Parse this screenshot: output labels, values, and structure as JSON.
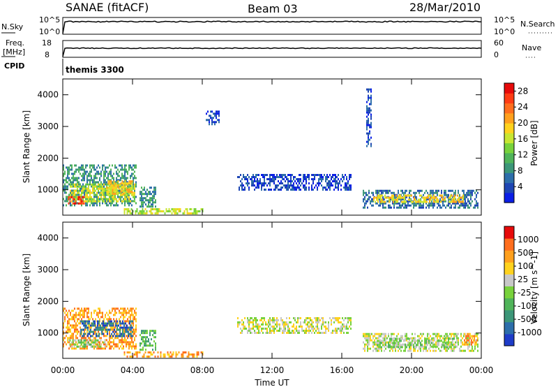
{
  "header": {
    "station": "SANAE (fitACF)",
    "beam": "Beam 03",
    "date": "28/Mar/2010"
  },
  "nsky_panel": {
    "left_label": "N.Sky",
    "right_label": "N.Search",
    "left_ticks": [
      "10^5",
      "10^0"
    ],
    "right_ticks": [
      "10^5",
      "10^0"
    ]
  },
  "freq_panel": {
    "left_label_1": "Freq.",
    "left_label_2": "[MHz]",
    "right_label": "Nave",
    "left_ticks": [
      "18",
      "8"
    ],
    "right_ticks": [
      "60",
      "0"
    ]
  },
  "cpid": {
    "label": "CPID",
    "value": "themis 3300"
  },
  "chart_data": [
    {
      "type": "heatmap",
      "panel": "power",
      "ylabel": "Slant Range [km]",
      "xlabel": "Time UT",
      "y_ticks": [
        "1000",
        "2000",
        "3000",
        "4000"
      ],
      "x_ticks": [
        "00:00",
        "04:00",
        "08:00",
        "12:00",
        "16:00",
        "20:00",
        "00:00"
      ],
      "ylim": [
        200,
        4500
      ],
      "xlim_hours": [
        0,
        24
      ],
      "colorbar": {
        "label": "Power [dB]",
        "range": [
          0,
          30
        ],
        "ticks": [
          "4",
          "8",
          "12",
          "16",
          "20",
          "24",
          "28"
        ],
        "colors": [
          "#0a1ee6",
          "#1e46b4",
          "#2d6eaa",
          "#3c9678",
          "#50b45a",
          "#78d23c",
          "#c8e632",
          "#ffd21e",
          "#ffa01e",
          "#ff6e1e",
          "#ff3c14",
          "#e60a0a"
        ]
      },
      "regions": [
        {
          "t0": 0.0,
          "t1": 4.2,
          "r0": 500,
          "r1": 1800,
          "level": 3
        },
        {
          "t0": 0.4,
          "t1": 4.1,
          "r0": 650,
          "r1": 1200,
          "level": 6
        },
        {
          "t0": 0.3,
          "t1": 1.2,
          "r0": 600,
          "r1": 800,
          "level": 10
        },
        {
          "t0": 2.5,
          "t1": 4.0,
          "r0": 900,
          "r1": 1300,
          "level": 7
        },
        {
          "t0": 4.4,
          "t1": 5.3,
          "r0": 500,
          "r1": 1100,
          "level": 3
        },
        {
          "t0": 3.5,
          "t1": 8.0,
          "r0": 250,
          "r1": 420,
          "level": 6
        },
        {
          "t0": 8.2,
          "t1": 9.0,
          "r0": 3100,
          "r1": 3500,
          "level": 1
        },
        {
          "t0": 10.0,
          "t1": 16.5,
          "r0": 1000,
          "r1": 1500,
          "level": 1
        },
        {
          "t0": 17.2,
          "t1": 23.8,
          "r0": 450,
          "r1": 1000,
          "level": 2
        },
        {
          "t0": 17.8,
          "t1": 23.0,
          "r0": 600,
          "r1": 850,
          "level": 7
        },
        {
          "t0": 17.4,
          "t1": 17.7,
          "r0": 2400,
          "r1": 4200,
          "level": 1
        }
      ]
    },
    {
      "type": "heatmap",
      "panel": "velocity",
      "ylabel": "Slant Range [km]",
      "xlabel": "Time UT",
      "y_ticks": [
        "1000",
        "2000",
        "3000",
        "4000"
      ],
      "x_ticks": [
        "00:00",
        "04:00",
        "08:00",
        "12:00",
        "16:00",
        "20:00",
        "00:00"
      ],
      "ylim": [
        200,
        4500
      ],
      "xlim_hours": [
        0,
        24
      ],
      "colorbar": {
        "label": "Velocity [m s^-1]",
        "ticks": [
          "1000",
          "500",
          "100",
          "25",
          "-25",
          "-100",
          "-500",
          "-1000"
        ],
        "colors": [
          "#1e3cc8",
          "#2d6eaa",
          "#3c9678",
          "#50b45a",
          "#78d23c",
          "#c8c8c8",
          "#ffd21e",
          "#ffa01e",
          "#ff6e1e",
          "#e60a0a"
        ]
      },
      "regions": [
        {
          "t0": 0.0,
          "t1": 4.2,
          "r0": 500,
          "r1": 1800,
          "level": 7
        },
        {
          "t0": 1.0,
          "t1": 4.0,
          "r0": 900,
          "r1": 1400,
          "level": 1
        },
        {
          "t0": 0.3,
          "t1": 2.5,
          "r0": 550,
          "r1": 800,
          "level": 4
        },
        {
          "t0": 4.4,
          "t1": 5.3,
          "r0": 500,
          "r1": 1100,
          "level": 3
        },
        {
          "t0": 3.5,
          "t1": 8.0,
          "r0": 250,
          "r1": 420,
          "level": 7
        },
        {
          "t0": 10.0,
          "t1": 16.5,
          "r0": 1000,
          "r1": 1500,
          "level": 5
        },
        {
          "t0": 17.2,
          "t1": 23.8,
          "r0": 450,
          "r1": 1000,
          "level": 5
        },
        {
          "t0": 18.0,
          "t1": 22.5,
          "r0": 550,
          "r1": 850,
          "level": 4
        },
        {
          "t0": 23.0,
          "t1": 23.8,
          "r0": 650,
          "r1": 1000,
          "level": 7
        }
      ]
    }
  ]
}
